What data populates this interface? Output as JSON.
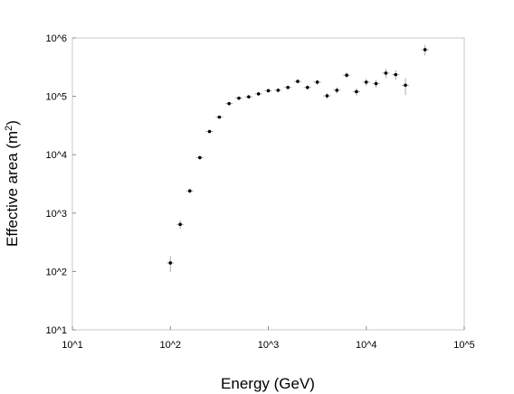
{
  "chart_data": {
    "type": "scatter",
    "title": "",
    "xlabel": "Energy (GeV)",
    "ylabel_main": "Effective area (m",
    "ylabel_sup": "2",
    "ylabel_end": ")",
    "x_scale": "log",
    "y_scale": "log",
    "xlim": [
      10,
      100000
    ],
    "ylim": [
      10,
      1000000
    ],
    "x_tick_labels": [
      "10^1",
      "10^2",
      "10^3",
      "10^4",
      "10^5"
    ],
    "y_tick_labels": [
      "10^1",
      "10^2",
      "10^3",
      "10^4",
      "10^5",
      "10^6"
    ],
    "x_tick_values": [
      10,
      100,
      1000,
      10000,
      100000
    ],
    "y_tick_values": [
      10,
      100,
      1000,
      10000,
      100000,
      1000000
    ],
    "grid": false,
    "legend": "none",
    "marker_color": "#000000",
    "frame_color": "#c8c8c8",
    "points": [
      {
        "x": 100,
        "y": 140,
        "y_err_low": 97,
        "y_err_high": 185,
        "x_err_low": 92,
        "x_err_high": 109
      },
      {
        "x": 126,
        "y": 640,
        "y_err_low": 540,
        "y_err_high": 760,
        "x_err_low": 116,
        "x_err_high": 137
      },
      {
        "x": 158,
        "y": 2400,
        "y_err_low": 2150,
        "y_err_high": 2650,
        "x_err_low": 145,
        "x_err_high": 172
      },
      {
        "x": 200,
        "y": 8900,
        "y_err_low": 8300,
        "y_err_high": 9500,
        "x_err_low": 183,
        "x_err_high": 218
      },
      {
        "x": 251,
        "y": 25000,
        "y_err_low": 23500,
        "y_err_high": 26500,
        "x_err_low": 230,
        "x_err_high": 274
      },
      {
        "x": 316,
        "y": 44000,
        "y_err_low": 41500,
        "y_err_high": 46500,
        "x_err_low": 290,
        "x_err_high": 345
      },
      {
        "x": 398,
        "y": 75000,
        "y_err_low": 71000,
        "y_err_high": 79000,
        "x_err_low": 365,
        "x_err_high": 434
      },
      {
        "x": 501,
        "y": 93000,
        "y_err_low": 88000,
        "y_err_high": 98000,
        "x_err_low": 459,
        "x_err_high": 546
      },
      {
        "x": 631,
        "y": 98000,
        "y_err_low": 92000,
        "y_err_high": 104000,
        "x_err_low": 578,
        "x_err_high": 688
      },
      {
        "x": 794,
        "y": 110000,
        "y_err_low": 103000,
        "y_err_high": 117000,
        "x_err_low": 728,
        "x_err_high": 866
      },
      {
        "x": 1000,
        "y": 125000,
        "y_err_low": 116000,
        "y_err_high": 134000,
        "x_err_low": 917,
        "x_err_high": 1090
      },
      {
        "x": 1259,
        "y": 127000,
        "y_err_low": 118000,
        "y_err_high": 136000,
        "x_err_low": 1154,
        "x_err_high": 1373
      },
      {
        "x": 1585,
        "y": 142000,
        "y_err_low": 131000,
        "y_err_high": 153000,
        "x_err_low": 1453,
        "x_err_high": 1729
      },
      {
        "x": 1995,
        "y": 180000,
        "y_err_low": 165000,
        "y_err_high": 195000,
        "x_err_low": 1830,
        "x_err_high": 2176
      },
      {
        "x": 2512,
        "y": 142000,
        "y_err_low": 129000,
        "y_err_high": 155000,
        "x_err_low": 2304,
        "x_err_high": 2739
      },
      {
        "x": 3162,
        "y": 175000,
        "y_err_low": 157000,
        "y_err_high": 193000,
        "x_err_low": 2900,
        "x_err_high": 3448
      },
      {
        "x": 3981,
        "y": 102000,
        "y_err_low": 91000,
        "y_err_high": 113000,
        "x_err_low": 3651,
        "x_err_high": 4341
      },
      {
        "x": 5012,
        "y": 127000,
        "y_err_low": 111000,
        "y_err_high": 143000,
        "x_err_low": 4597,
        "x_err_high": 5466
      },
      {
        "x": 6310,
        "y": 230000,
        "y_err_low": 205000,
        "y_err_high": 255000,
        "x_err_low": 5787,
        "x_err_high": 6881
      },
      {
        "x": 7943,
        "y": 120000,
        "y_err_low": 103000,
        "y_err_high": 137000,
        "x_err_low": 7285,
        "x_err_high": 8662
      },
      {
        "x": 10000,
        "y": 175000,
        "y_err_low": 150000,
        "y_err_high": 200000,
        "x_err_low": 9171,
        "x_err_high": 10905
      },
      {
        "x": 12589,
        "y": 165000,
        "y_err_low": 140000,
        "y_err_high": 190000,
        "x_err_low": 11546,
        "x_err_high": 13729
      },
      {
        "x": 15849,
        "y": 250000,
        "y_err_low": 205000,
        "y_err_high": 295000,
        "x_err_low": 14536,
        "x_err_high": 17284
      },
      {
        "x": 19953,
        "y": 235000,
        "y_err_low": 190000,
        "y_err_high": 280000,
        "x_err_low": 18299,
        "x_err_high": 21759
      },
      {
        "x": 25119,
        "y": 155000,
        "y_err_low": 105000,
        "y_err_high": 205000,
        "x_err_low": 23036,
        "x_err_high": 27393
      },
      {
        "x": 39811,
        "y": 630000,
        "y_err_low": 500000,
        "y_err_high": 760000,
        "x_err_low": 36511,
        "x_err_high": 43409
      }
    ]
  }
}
